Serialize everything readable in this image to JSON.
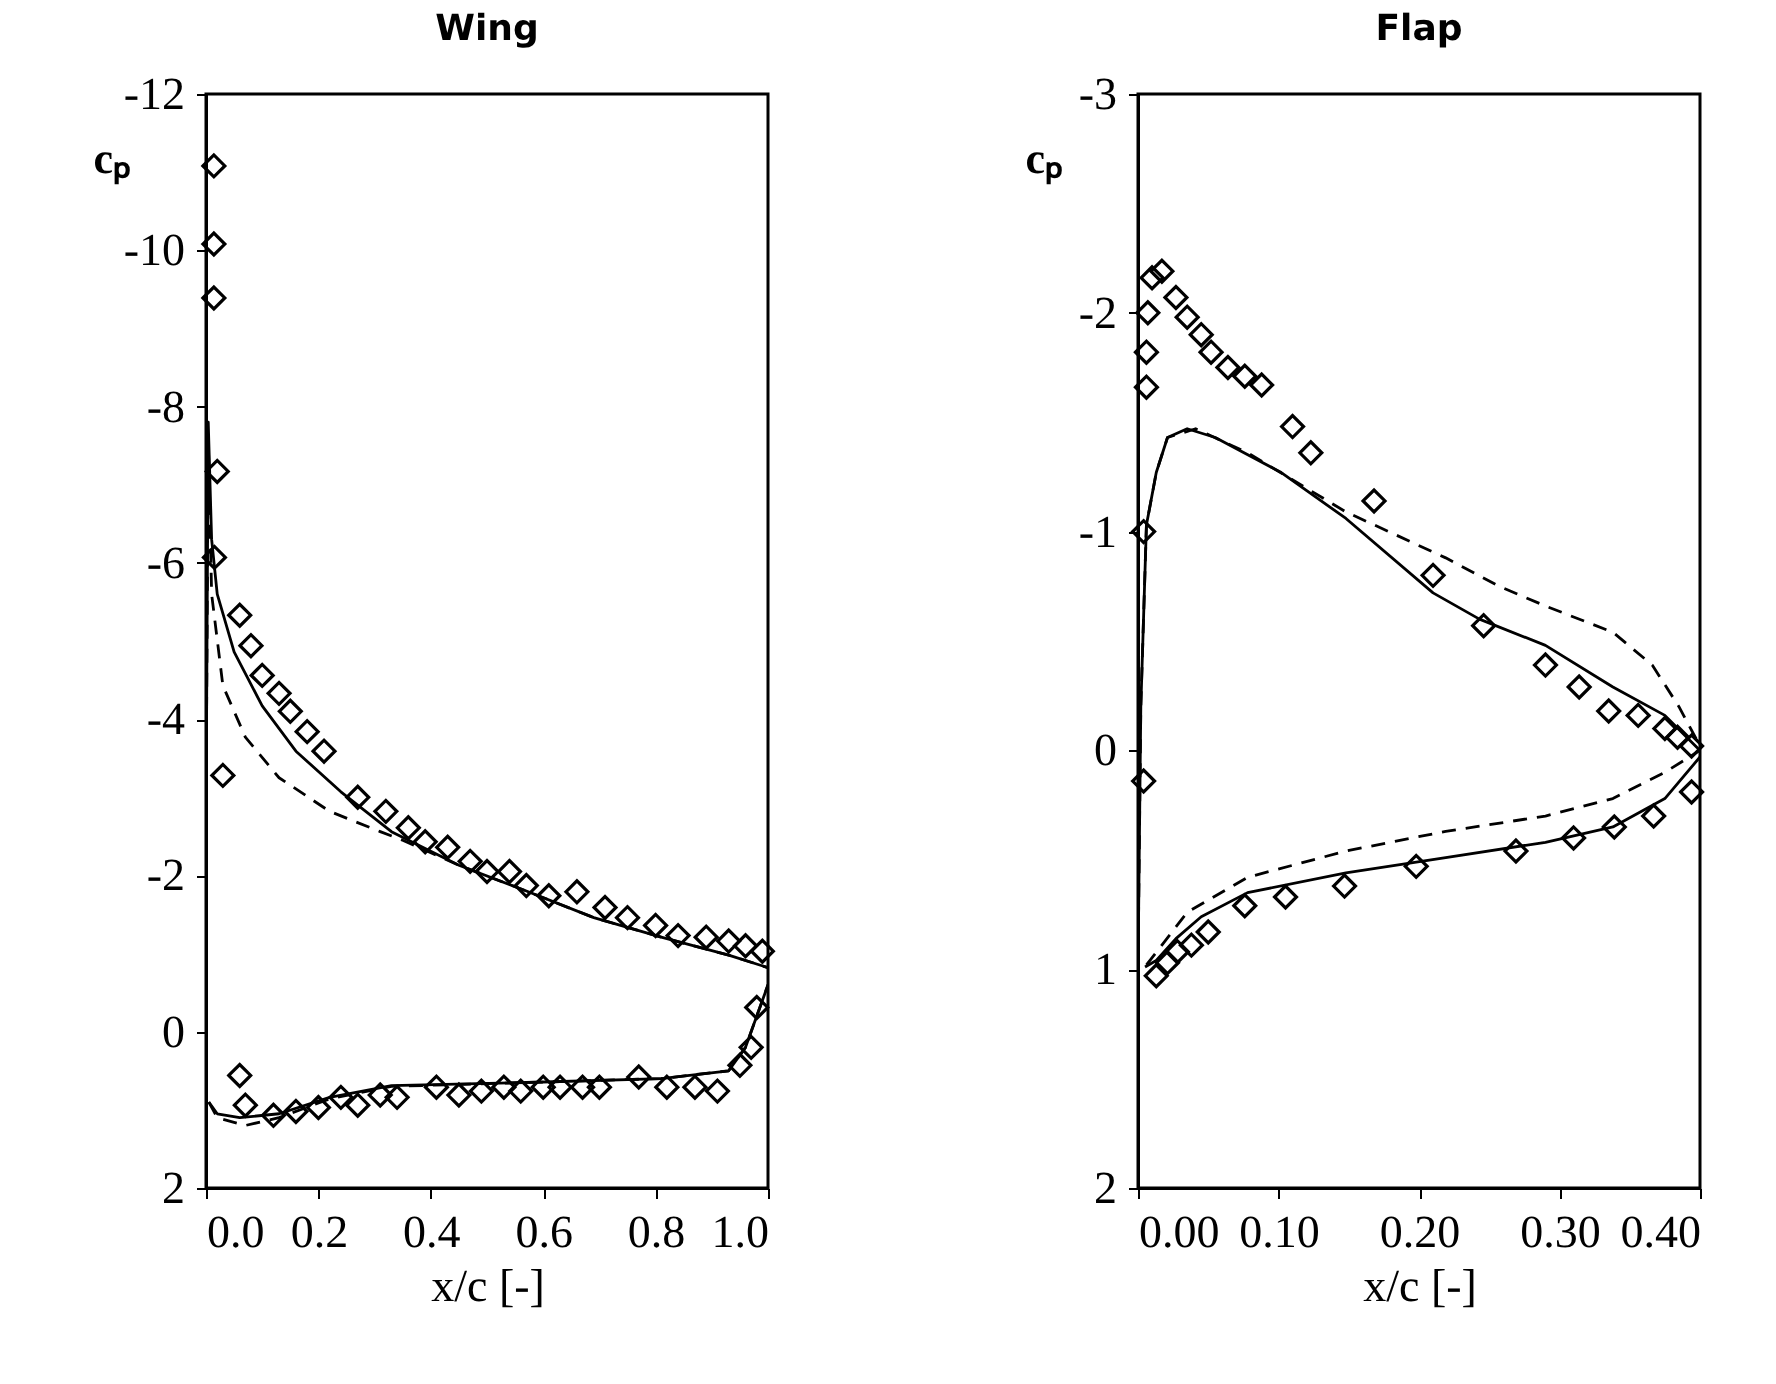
{
  "chart_data": [
    {
      "type": "line",
      "title": "Wing",
      "xlabel": "x/c [-]",
      "ylabel": "cₚ",
      "xlim": [
        0,
        1
      ],
      "ylim": [
        2,
        -12
      ],
      "xticks": [
        {
          "value": 0,
          "label": "0.0"
        },
        {
          "value": 0.2,
          "label": "0.2"
        },
        {
          "value": 0.4,
          "label": "0.4"
        },
        {
          "value": 0.6,
          "label": "0.6"
        },
        {
          "value": 0.8,
          "label": "0.8"
        },
        {
          "value": 1,
          "label": "1.0"
        }
      ],
      "yticks": [
        -12,
        -10,
        -8,
        -6,
        -4,
        -2,
        0,
        2
      ],
      "series": [
        {
          "type": "scatter",
          "marker": "diamond",
          "color": "#000000",
          "x": [
            0.014,
            0.014,
            0.014,
            0.02,
            0.015,
            0.03,
            0.06,
            0.08,
            0.1,
            0.13,
            0.15,
            0.18,
            0.21,
            0.27,
            0.32,
            0.36,
            0.39,
            0.43,
            0.47,
            0.5,
            0.54,
            0.57,
            0.61,
            0.66,
            0.71,
            0.75,
            0.8,
            0.84,
            0.89,
            0.93,
            0.96,
            0.99,
            0.98,
            0.97,
            0.95,
            0.91,
            0.87,
            0.82,
            0.77,
            0.7,
            0.67,
            0.63,
            0.6,
            0.56,
            0.53,
            0.49,
            0.45,
            0.41,
            0.34,
            0.31,
            0.27,
            0.24,
            0.2,
            0.16,
            0.12,
            0.07,
            0.06
          ],
          "values": [
            -11.08,
            -10.08,
            -9.39,
            -7.17,
            -6.07,
            -3.28,
            -5.33,
            -4.94,
            -4.56,
            -4.33,
            -4.1,
            -3.84,
            -3.59,
            -3.0,
            -2.82,
            -2.61,
            -2.43,
            -2.36,
            -2.18,
            -2.05,
            -2.05,
            -1.87,
            -1.74,
            -1.79,
            -1.59,
            -1.46,
            -1.36,
            -1.23,
            -1.21,
            -1.16,
            -1.1,
            -1.03,
            -0.31,
            0.2,
            0.43,
            0.76,
            0.71,
            0.71,
            0.58,
            0.71,
            0.71,
            0.71,
            0.71,
            0.76,
            0.71,
            0.76,
            0.81,
            0.71,
            0.84,
            0.81,
            0.94,
            0.84,
            0.97,
            1.02,
            1.07,
            0.94,
            0.56
          ]
        },
        {
          "type": "line",
          "line_style": "solid",
          "color": "#000000",
          "x": [
            0.0,
            0.001,
            0.004,
            0.01,
            0.02,
            0.05,
            0.1,
            0.16,
            0.24,
            0.33,
            0.45,
            0.57,
            0.69,
            0.81,
            0.93,
            1.0
          ],
          "values": [
            0.5,
            -4,
            -7.8,
            -6.3,
            -5.6,
            -4.86,
            -4.17,
            -3.59,
            -3.07,
            -2.56,
            -2.13,
            -1.8,
            -1.46,
            -1.21,
            -0.98,
            -0.82
          ]
        },
        {
          "type": "line",
          "line_style": "solid",
          "color": "#000000",
          "x": [
            0.005,
            0.02,
            0.06,
            0.13,
            0.22,
            0.33,
            0.57,
            0.81,
            0.93,
            0.96,
            0.99,
            1.0
          ],
          "values": [
            0.9,
            1.05,
            1.1,
            1.05,
            0.84,
            0.69,
            0.65,
            0.6,
            0.5,
            0.2,
            -0.4,
            -0.6
          ]
        },
        {
          "type": "line",
          "line_style": "dashed",
          "color": "#000000",
          "x": [
            0.0,
            0.001,
            0.004,
            0.01,
            0.03,
            0.07,
            0.13,
            0.22,
            0.31,
            0.35,
            0.45,
            0.57,
            0.69,
            0.81,
            0.93,
            1.0
          ],
          "values": [
            0.5,
            -4,
            -7.6,
            -5.6,
            -4.43,
            -3.77,
            -3.25,
            -2.82,
            -2.56,
            -2.45,
            -2.13,
            -1.8,
            -1.46,
            -1.21,
            -0.98,
            -0.82
          ]
        },
        {
          "type": "line",
          "line_style": "dashed",
          "color": "#000000",
          "x": [
            0.005,
            0.02,
            0.07,
            0.13,
            0.22,
            0.33,
            0.57,
            0.81,
            0.93,
            0.96,
            0.99,
            1.0
          ],
          "values": [
            0.9,
            1.1,
            1.2,
            1.1,
            0.86,
            0.7,
            0.65,
            0.6,
            0.5,
            0.2,
            -0.4,
            -0.6
          ]
        }
      ]
    },
    {
      "type": "line",
      "title": "Flap",
      "xlabel": "x/c [-]",
      "ylabel": "cₚ",
      "xlim": [
        0,
        0.4
      ],
      "ylim": [
        2,
        -3
      ],
      "xticks": [
        {
          "value": 0,
          "label": "0.00"
        },
        {
          "value": 0.1,
          "label": "0.10"
        },
        {
          "value": 0.2,
          "label": "0.20"
        },
        {
          "value": 0.3,
          "label": "0.30"
        },
        {
          "value": 0.4,
          "label": "0.40"
        }
      ],
      "yticks": [
        -3,
        -2,
        -1,
        0,
        1,
        2
      ],
      "series": [
        {
          "type": "scatter",
          "marker": "diamond",
          "color": "#000000",
          "x": [
            0.01,
            0.017,
            0.027,
            0.035,
            0.045,
            0.052,
            0.064,
            0.076,
            0.088,
            0.11,
            0.123,
            0.168,
            0.21,
            0.246,
            0.29,
            0.314,
            0.335,
            0.356,
            0.375,
            0.384,
            0.394,
            0.394,
            0.367,
            0.339,
            0.31,
            0.269,
            0.198,
            0.147,
            0.105,
            0.076,
            0.05,
            0.038,
            0.028,
            0.021,
            0.013,
            0.007,
            0.006,
            0.006,
            0.004,
            0.004
          ],
          "values": [
            -2.16,
            -2.19,
            -2.07,
            -1.98,
            -1.9,
            -1.82,
            -1.75,
            -1.71,
            -1.67,
            -1.48,
            -1.36,
            -1.14,
            -0.8,
            -0.57,
            -0.39,
            -0.29,
            -0.18,
            -0.16,
            -0.1,
            -0.06,
            -0.02,
            0.19,
            0.3,
            0.35,
            0.4,
            0.46,
            0.53,
            0.62,
            0.67,
            0.71,
            0.83,
            0.89,
            0.92,
            0.97,
            1.03,
            -2.0,
            -1.82,
            -1.66,
            -1.0,
            0.14
          ]
        },
        {
          "type": "line",
          "line_style": "solid",
          "color": "#000000",
          "x": [
            0.0,
            0.002,
            0.006,
            0.013,
            0.021,
            0.035,
            0.055,
            0.102,
            0.148,
            0.21,
            0.243,
            0.29,
            0.338,
            0.375,
            0.4
          ],
          "values": [
            1.0,
            -0.2,
            -1.03,
            -1.27,
            -1.43,
            -1.47,
            -1.43,
            -1.27,
            -1.06,
            -0.72,
            -0.6,
            -0.48,
            -0.29,
            -0.16,
            0.0
          ]
        },
        {
          "type": "line",
          "line_style": "solid",
          "color": "#000000",
          "x": [
            0.005,
            0.013,
            0.027,
            0.045,
            0.078,
            0.148,
            0.219,
            0.29,
            0.338,
            0.375,
            0.4
          ],
          "values": [
            0.99,
            0.96,
            0.86,
            0.76,
            0.65,
            0.56,
            0.49,
            0.42,
            0.35,
            0.22,
            0.03
          ]
        },
        {
          "type": "line",
          "line_style": "dashed",
          "color": "#000000",
          "x": [
            0.0,
            0.002,
            0.006,
            0.013,
            0.021,
            0.041,
            0.078,
            0.148,
            0.219,
            0.257,
            0.29,
            0.338,
            0.366,
            0.385,
            0.4
          ],
          "values": [
            1.0,
            -0.2,
            -1.03,
            -1.27,
            -1.43,
            -1.47,
            -1.36,
            -1.09,
            -0.88,
            -0.75,
            -0.66,
            -0.54,
            -0.39,
            -0.2,
            -0.02
          ]
        },
        {
          "type": "line",
          "line_style": "dashed",
          "color": "#000000",
          "x": [
            0.006,
            0.017,
            0.035,
            0.078,
            0.148,
            0.219,
            0.29,
            0.338,
            0.375,
            0.4
          ],
          "values": [
            0.98,
            0.89,
            0.74,
            0.58,
            0.46,
            0.37,
            0.3,
            0.22,
            0.1,
            0.0
          ]
        }
      ]
    }
  ]
}
